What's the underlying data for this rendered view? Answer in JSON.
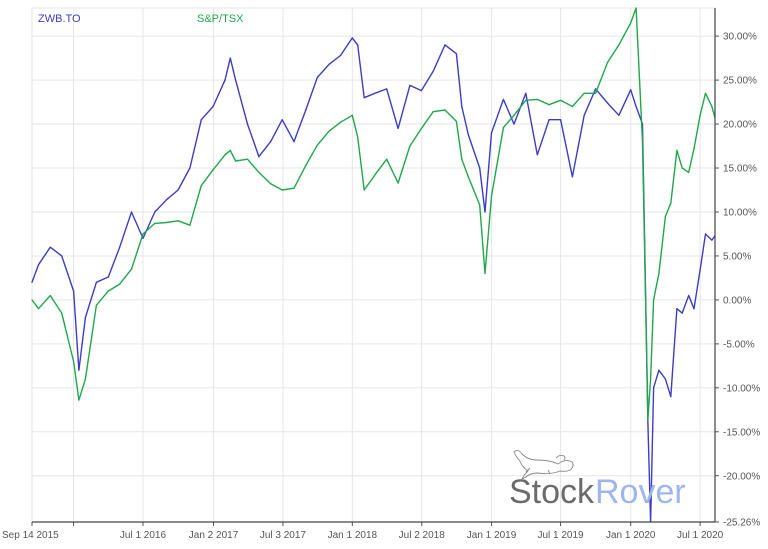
{
  "chart_data": {
    "type": "line",
    "title": "",
    "xlabel": "",
    "ylabel": "",
    "x_range": [
      "2015-09-14",
      "2020-08-09"
    ],
    "ylim": [
      -25.26,
      33.2
    ],
    "grid": true,
    "legend_placement": "top-left",
    "y_ticks": [
      30,
      25,
      20,
      15,
      10,
      5,
      0,
      -5,
      -10,
      -15,
      -20,
      -25.26
    ],
    "y_tick_labels": [
      "30.00%",
      "25.00%",
      "20.00%",
      "15.00%",
      "10.00%",
      "5.00%",
      "0.00%",
      "-5.00%",
      "-10.00%",
      "-15.00%",
      "-20.00%",
      "-25.26%"
    ],
    "x_ticks": [
      "2015-09-14",
      "2016-01-01",
      "2016-07-01",
      "2017-01-02",
      "2017-07-03",
      "2018-01-01",
      "2018-07-02",
      "2019-01-01",
      "2019-07-01",
      "2020-01-01",
      "2020-07-01"
    ],
    "x_tick_labels": [
      "Sep 14 2015",
      "",
      "Jul 1 2016",
      "Jan 2 2017",
      "Jul 3 2017",
      "Jan 1 2018",
      "Jul 2 2018",
      "Jan 1 2019",
      "Jul 1 2019",
      "Jan 1 2020",
      "Jul 1 2020"
    ],
    "x": [
      "2015-09-14",
      "2015-10-01",
      "2015-11-01",
      "2015-12-01",
      "2016-01-01",
      "2016-01-15",
      "2016-02-01",
      "2016-03-01",
      "2016-04-01",
      "2016-05-01",
      "2016-06-01",
      "2016-07-01",
      "2016-08-01",
      "2016-09-01",
      "2016-10-01",
      "2016-11-01",
      "2016-12-01",
      "2017-01-01",
      "2017-02-01",
      "2017-02-15",
      "2017-03-01",
      "2017-04-01",
      "2017-05-01",
      "2017-06-01",
      "2017-07-01",
      "2017-08-01",
      "2017-09-01",
      "2017-10-01",
      "2017-11-01",
      "2017-12-01",
      "2018-01-01",
      "2018-01-15",
      "2018-02-01",
      "2018-03-01",
      "2018-04-01",
      "2018-05-01",
      "2018-06-01",
      "2018-07-01",
      "2018-08-01",
      "2018-09-01",
      "2018-10-01",
      "2018-10-15",
      "2018-11-01",
      "2018-12-01",
      "2018-12-15",
      "2019-01-01",
      "2019-02-01",
      "2019-03-01",
      "2019-04-01",
      "2019-05-01",
      "2019-06-01",
      "2019-07-01",
      "2019-08-01",
      "2019-09-01",
      "2019-10-01",
      "2019-11-01",
      "2019-12-01",
      "2020-01-01",
      "2020-01-15",
      "2020-02-01",
      "2020-02-15",
      "2020-02-22",
      "2020-03-01",
      "2020-03-15",
      "2020-04-01",
      "2020-04-15",
      "2020-05-01",
      "2020-05-15",
      "2020-06-01",
      "2020-06-15",
      "2020-07-01",
      "2020-07-15",
      "2020-08-01",
      "2020-08-09"
    ],
    "series": [
      {
        "name": "ZWB.TO",
        "color": "#3c3cc8",
        "values": [
          2,
          4,
          6,
          5,
          1,
          -8,
          -2,
          2,
          2.6,
          6,
          10,
          7,
          10,
          11.4,
          12.5,
          15,
          20.5,
          22,
          25,
          27.5,
          25,
          20,
          16.3,
          18,
          20.5,
          18,
          21.6,
          25.3,
          26.8,
          27.8,
          29.8,
          29,
          23,
          23.5,
          24,
          19.5,
          24.4,
          23.8,
          26,
          29,
          28,
          22,
          18.8,
          15,
          10,
          19,
          22.8,
          20,
          23.5,
          16.5,
          20.5,
          20.5,
          14,
          21,
          24,
          22.4,
          21,
          23.9,
          22,
          20,
          -14,
          -25.26,
          -10,
          -8,
          -9,
          -11,
          -1,
          -1.5,
          0.5,
          -1,
          3.4,
          7.5,
          6.8,
          7.3
        ]
      },
      {
        "name": "S&P/TSX",
        "color": "#1fa84a",
        "values": [
          0,
          -1,
          0.5,
          -1.5,
          -7,
          -11.4,
          -9,
          -0.6,
          1,
          1.8,
          3.5,
          7.5,
          8.7,
          8.8,
          9,
          8.5,
          13,
          14.8,
          16.5,
          17,
          15.8,
          16,
          14.5,
          13.2,
          12.5,
          12.7,
          15.3,
          17.6,
          19.2,
          20.2,
          21,
          18.5,
          12.5,
          14.2,
          16,
          13.3,
          17.5,
          19.5,
          21.4,
          21.6,
          20.3,
          16,
          14,
          10.8,
          3,
          11.8,
          19.6,
          21,
          22.7,
          22.8,
          22.2,
          22.7,
          22,
          23.5,
          23.5,
          27,
          29,
          31.5,
          33.2,
          18,
          -13.6,
          -9,
          0,
          3,
          9.5,
          11,
          17,
          15,
          14.5,
          17.2,
          21,
          23.5,
          22,
          20.7
        ]
      }
    ]
  },
  "watermark": {
    "part1": "Stock",
    "part2": "Rover",
    "color1": "#6b6b6b",
    "color2": "#9fb5ee"
  }
}
